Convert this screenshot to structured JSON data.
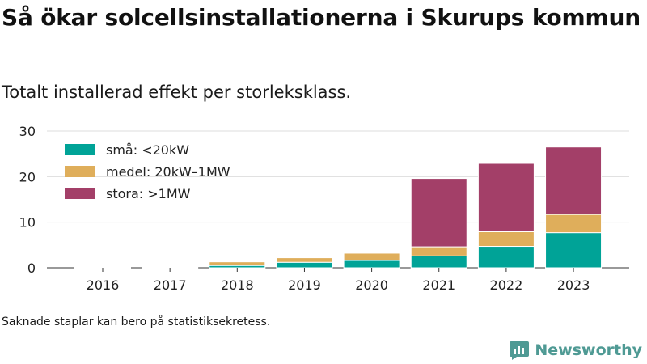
{
  "header": {
    "title": "Så ökar solcellsinstallationerna i Skurups kommun",
    "subtitle": "Totalt installerad effekt per storleksklass."
  },
  "footer": {
    "note": "Saknade staplar kan bero på statistiksekretess.",
    "brand": "Newsworthy"
  },
  "chart_data": {
    "type": "bar",
    "stacked": true,
    "title": "Så ökar solcellsinstallationerna i Skurups kommun",
    "subtitle": "Totalt installerad effekt per storleksklass.",
    "xlabel": "",
    "ylabel": "",
    "ylim": [
      0,
      30
    ],
    "yticks": [
      0,
      10,
      20,
      30
    ],
    "grid": true,
    "legend_position": "top-left",
    "categories": [
      "2016",
      "2017",
      "2018",
      "2019",
      "2020",
      "2021",
      "2022",
      "2023"
    ],
    "series": [
      {
        "name": "små: <20kW",
        "color": "#00a397",
        "values": [
          0.05,
          0.1,
          0.5,
          1.2,
          1.6,
          2.6,
          4.7,
          7.7
        ]
      },
      {
        "name": "medel: 20kW–1MW",
        "color": "#dfae5b",
        "values": [
          0,
          0,
          0.8,
          1.0,
          1.6,
          2.0,
          3.2,
          4.0
        ]
      },
      {
        "name": "stora: >1MW",
        "color": "#a33f68",
        "values": [
          0,
          0,
          0,
          0,
          0,
          15.0,
          15.0,
          14.8
        ]
      }
    ]
  }
}
